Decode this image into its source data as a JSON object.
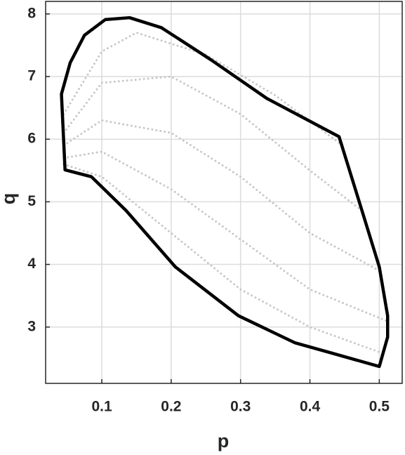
{
  "chart_data": {
    "type": "line",
    "x_label": "p",
    "y_label": "q",
    "xlim": [
      0.019,
      0.533
    ],
    "ylim": [
      2.1,
      8.2
    ],
    "xticks": [
      0.1,
      0.2,
      0.3,
      0.4,
      0.5
    ],
    "yticks": [
      3,
      4,
      5,
      6,
      7,
      8
    ],
    "grid": true,
    "series": [
      {
        "color": "#c8c8c8",
        "style": "dotted",
        "x": [
          0.045,
          0.1,
          0.15,
          0.25,
          0.35,
          0.447
        ],
        "y": [
          6.4,
          7.4,
          7.7,
          7.35,
          6.7,
          5.9
        ]
      },
      {
        "color": "#c8c8c8",
        "style": "dotted",
        "x": [
          0.045,
          0.1,
          0.2,
          0.3,
          0.4,
          0.47
        ],
        "y": [
          6.1,
          6.9,
          7.0,
          6.4,
          5.5,
          4.9
        ]
      },
      {
        "color": "#c8c8c8",
        "style": "dotted",
        "x": [
          0.045,
          0.1,
          0.2,
          0.3,
          0.4,
          0.5
        ],
        "y": [
          5.9,
          6.3,
          6.1,
          5.4,
          4.5,
          3.9
        ]
      },
      {
        "color": "#c8c8c8",
        "style": "dotted",
        "x": [
          0.045,
          0.1,
          0.2,
          0.3,
          0.4,
          0.51
        ],
        "y": [
          5.7,
          5.8,
          5.2,
          4.4,
          3.6,
          3.1
        ]
      },
      {
        "color": "#c8c8c8",
        "style": "dotted",
        "x": [
          0.045,
          0.1,
          0.2,
          0.3,
          0.4,
          0.5
        ],
        "y": [
          5.6,
          5.4,
          4.5,
          3.6,
          3.0,
          2.6
        ]
      },
      {
        "color": "#000000",
        "style": "solid",
        "x": [
          0.0418,
          0.0544,
          0.075,
          0.105,
          0.14,
          0.186,
          0.257,
          0.338,
          0.442,
          0.475,
          0.5,
          0.512,
          0.512,
          0.5,
          0.439,
          0.378,
          0.297,
          0.206,
          0.135,
          0.085,
          0.047,
          0.0418
        ],
        "y": [
          6.72,
          7.22,
          7.66,
          7.91,
          7.94,
          7.78,
          7.27,
          6.65,
          6.04,
          4.86,
          3.96,
          3.18,
          2.84,
          2.37,
          2.56,
          2.75,
          3.18,
          3.96,
          4.86,
          5.4,
          5.51,
          6.72
        ]
      }
    ]
  }
}
